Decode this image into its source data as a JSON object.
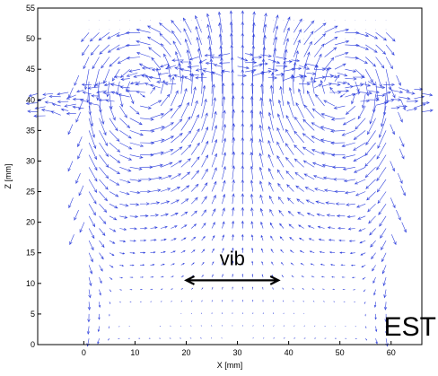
{
  "chart_data": {
    "type": "quiver",
    "title": "",
    "xlabel": "X [mm]",
    "ylabel": "Z [mm]",
    "xlim": [
      -9,
      66
    ],
    "ylim": [
      0,
      55
    ],
    "x_ticks": [
      0,
      10,
      20,
      30,
      40,
      50,
      60
    ],
    "y_ticks": [
      0,
      5,
      10,
      15,
      20,
      25,
      30,
      35,
      40,
      45,
      50,
      55
    ],
    "grid": false,
    "arrow_color": "#3344dd",
    "container_walls_x": [
      1,
      59
    ],
    "vortex_centers": [
      {
        "x": 12,
        "z": 42,
        "rotation": "counterclockwise"
      },
      {
        "x": 50,
        "z": 42,
        "rotation": "clockwise"
      }
    ],
    "annotations": [
      {
        "text": "vib",
        "x": 29,
        "z": 13,
        "arrow": "double-headed",
        "arrow_x_range": [
          20,
          38
        ],
        "arrow_z": 10.5
      },
      {
        "text": "EST",
        "x": 65,
        "z": 2
      }
    ]
  }
}
